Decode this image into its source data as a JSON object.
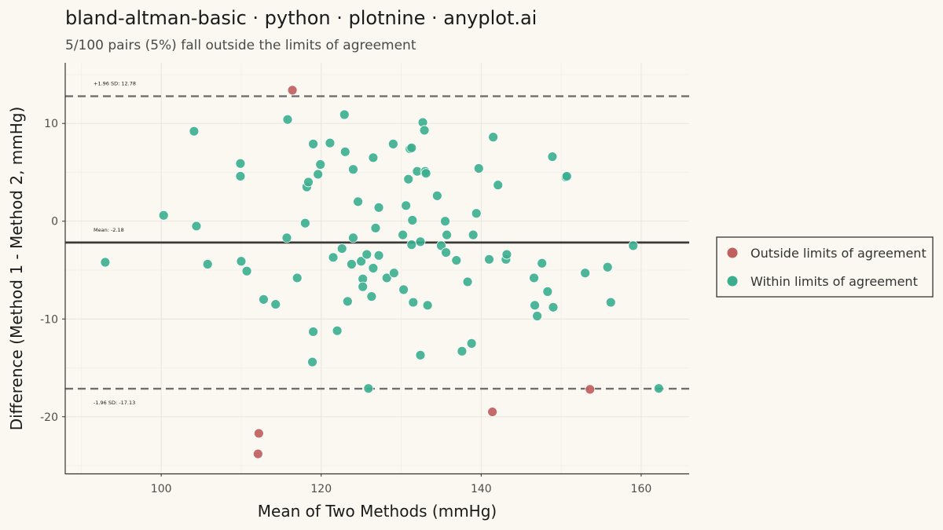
{
  "chart_data": {
    "type": "scatter",
    "title": "bland-altman-basic · python · plotnine · anyplot.ai",
    "subtitle": "5/100 pairs (5%) fall outside the limits of agreement",
    "xlabel": "Mean of Two Methods (mmHg)",
    "ylabel": "Difference (Method 1 - Method 2, mmHg)",
    "xlim": [
      88,
      166
    ],
    "ylim": [
      -25.8,
      16.2
    ],
    "x_ticks": [
      100,
      120,
      140,
      160
    ],
    "y_ticks": [
      -20,
      -10,
      0,
      10
    ],
    "grid": true,
    "legend_position": "right",
    "reference_lines": [
      {
        "label": "+1.96 SD: 12.78",
        "value": 12.78,
        "style": "dashed"
      },
      {
        "label": "Mean: -2.18",
        "value": -2.18,
        "style": "solid"
      },
      {
        "label": "-1.96 SD: -17.13",
        "value": -17.13,
        "style": "dashed"
      }
    ],
    "series": [
      {
        "name": "Outside limits of agreement",
        "color": "#C0605E",
        "points": [
          [
            116.4,
            13.4
          ],
          [
            112.2,
            -21.7
          ],
          [
            112.1,
            -23.8
          ],
          [
            141.4,
            -19.5
          ],
          [
            153.6,
            -17.2
          ]
        ]
      },
      {
        "name": "Within limits of agreement",
        "color": "#3AAE8E",
        "points": [
          [
            93.0,
            -4.2
          ],
          [
            100.3,
            0.6
          ],
          [
            104.1,
            9.2
          ],
          [
            104.4,
            -0.5
          ],
          [
            105.8,
            -4.4
          ],
          [
            109.9,
            5.9
          ],
          [
            109.9,
            4.6
          ],
          [
            110.0,
            -4.1
          ],
          [
            110.7,
            -5.1
          ],
          [
            112.8,
            -8.0
          ],
          [
            114.3,
            -8.5
          ],
          [
            115.7,
            -1.7
          ],
          [
            115.8,
            10.4
          ],
          [
            117.0,
            -5.8
          ],
          [
            118.0,
            -0.2
          ],
          [
            118.2,
            3.5
          ],
          [
            118.4,
            4.0
          ],
          [
            119.0,
            7.9
          ],
          [
            119.0,
            -11.3
          ],
          [
            118.9,
            -14.4
          ],
          [
            119.6,
            4.8
          ],
          [
            119.9,
            5.8
          ],
          [
            121.1,
            8.0
          ],
          [
            121.5,
            -3.7
          ],
          [
            122.0,
            -11.2
          ],
          [
            122.6,
            -2.8
          ],
          [
            122.9,
            10.9
          ],
          [
            123.0,
            7.1
          ],
          [
            123.3,
            -8.2
          ],
          [
            123.8,
            -4.4
          ],
          [
            124.0,
            -1.7
          ],
          [
            124.0,
            5.3
          ],
          [
            124.6,
            2.0
          ],
          [
            125.0,
            -4.1
          ],
          [
            125.2,
            -5.9
          ],
          [
            125.2,
            -6.7
          ],
          [
            125.7,
            -3.4
          ],
          [
            125.9,
            -17.1
          ],
          [
            126.3,
            -7.7
          ],
          [
            126.5,
            6.5
          ],
          [
            126.5,
            -4.8
          ],
          [
            126.8,
            -0.7
          ],
          [
            127.2,
            1.4
          ],
          [
            127.2,
            -3.5
          ],
          [
            128.2,
            -5.8
          ],
          [
            129.0,
            7.9
          ],
          [
            129.1,
            -5.3
          ],
          [
            130.2,
            -1.4
          ],
          [
            130.3,
            -7.0
          ],
          [
            130.6,
            1.6
          ],
          [
            130.9,
            4.3
          ],
          [
            131.1,
            7.4
          ],
          [
            131.3,
            7.5
          ],
          [
            131.3,
            -2.4
          ],
          [
            131.4,
            0.1
          ],
          [
            131.5,
            -8.3
          ],
          [
            132.0,
            5.1
          ],
          [
            132.4,
            -2.1
          ],
          [
            132.4,
            -13.7
          ],
          [
            132.7,
            10.1
          ],
          [
            132.9,
            9.3
          ],
          [
            133.0,
            5.1
          ],
          [
            133.1,
            4.9
          ],
          [
            133.3,
            -8.6
          ],
          [
            134.5,
            2.6
          ],
          [
            135.0,
            -2.5
          ],
          [
            135.5,
            0.0
          ],
          [
            135.6,
            -3.2
          ],
          [
            135.7,
            -1.4
          ],
          [
            136.9,
            -4.0
          ],
          [
            137.6,
            -13.3
          ],
          [
            138.3,
            -6.2
          ],
          [
            138.8,
            -12.5
          ],
          [
            139.0,
            -1.4
          ],
          [
            139.4,
            0.8
          ],
          [
            139.7,
            5.4
          ],
          [
            141.0,
            -3.9
          ],
          [
            141.5,
            8.6
          ],
          [
            142.1,
            3.7
          ],
          [
            143.1,
            -3.9
          ],
          [
            143.2,
            -3.4
          ],
          [
            146.6,
            -5.8
          ],
          [
            146.7,
            -8.6
          ],
          [
            147.0,
            -9.7
          ],
          [
            147.6,
            -4.3
          ],
          [
            148.3,
            -7.2
          ],
          [
            148.9,
            6.6
          ],
          [
            149.0,
            -8.8
          ],
          [
            150.6,
            4.5
          ],
          [
            150.7,
            4.6
          ],
          [
            153.0,
            -5.3
          ],
          [
            155.8,
            -4.7
          ],
          [
            156.2,
            -8.3
          ],
          [
            159.0,
            -2.5
          ],
          [
            162.2,
            -17.1
          ]
        ]
      }
    ]
  }
}
